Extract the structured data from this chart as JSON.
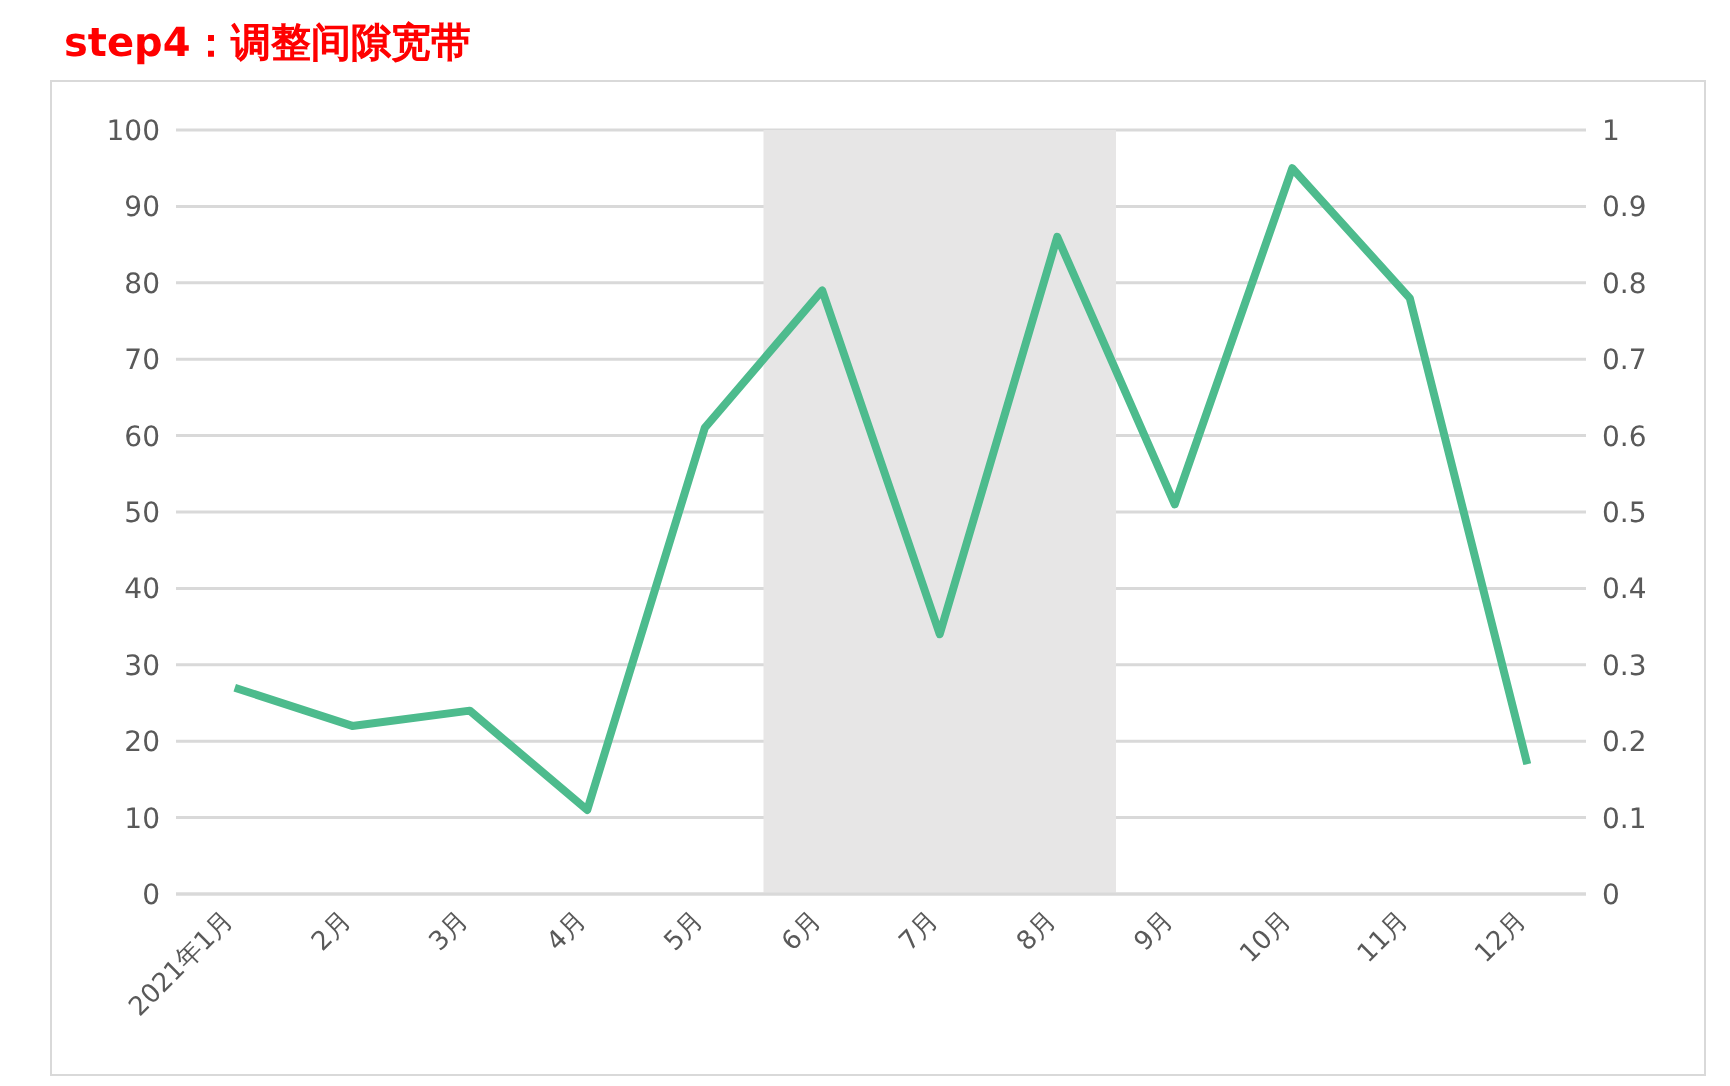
{
  "chart_data": {
    "type": "line",
    "title": "step4：调整间隙宽带",
    "categories": [
      "2021年1月",
      "2月",
      "3月",
      "4月",
      "5月",
      "6月",
      "7月",
      "8月",
      "9月",
      "10月",
      "11月",
      "12月"
    ],
    "series": [
      {
        "color": "#4dbb8d",
        "values": [
          27,
          22,
          24,
          11,
          61,
          79,
          34,
          86,
          51,
          95,
          78,
          17
        ]
      }
    ],
    "ylim": [
      0,
      100
    ],
    "yticks": [
      0,
      10,
      20,
      30,
      40,
      50,
      60,
      70,
      80,
      90,
      100
    ],
    "y2lim": [
      0,
      1
    ],
    "y2ticks": [
      0,
      0.1,
      0.2,
      0.3,
      0.4,
      0.5,
      0.6,
      0.7,
      0.8,
      0.9,
      1
    ],
    "bands": [
      {
        "axis": "x",
        "from": "6月",
        "to": "8月",
        "color": "#e7e6e6"
      }
    ],
    "grid": "y",
    "legend": false,
    "marker": "none",
    "line_style": "solid"
  }
}
